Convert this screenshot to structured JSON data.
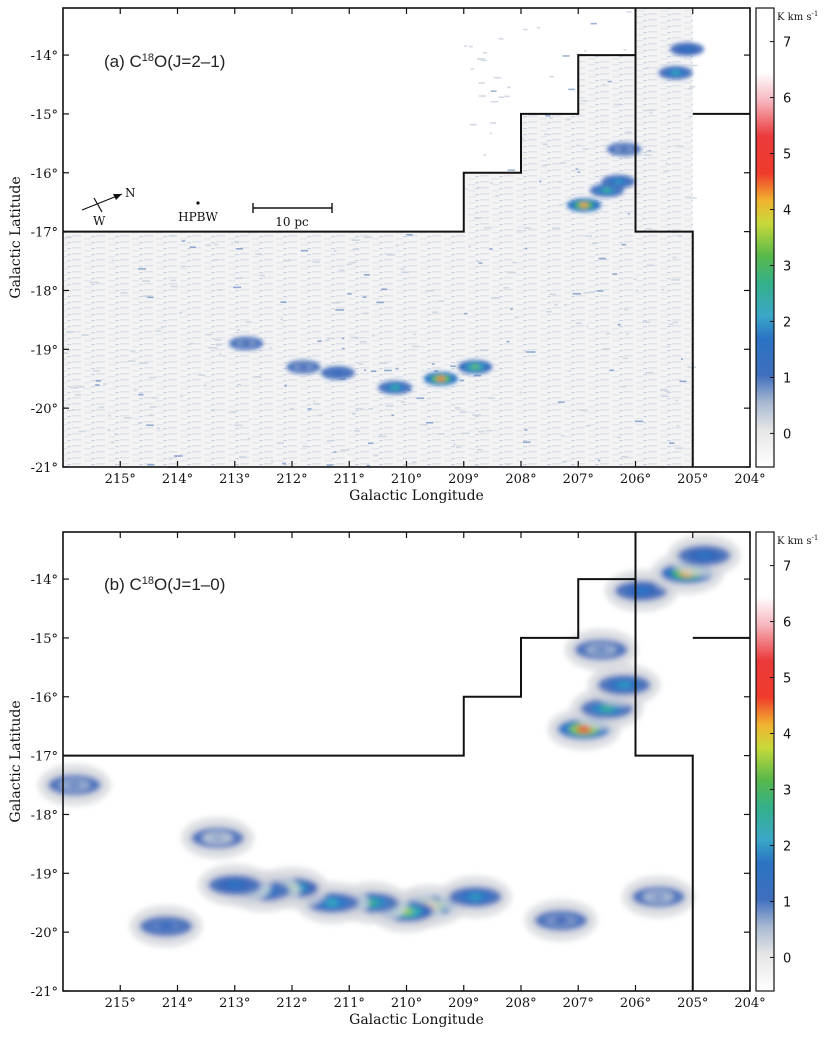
{
  "chart_data": [
    {
      "type": "heatmap",
      "panel_label": "(a) C",
      "panel_sup": "18",
      "panel_suffix": "O(J=2–1)",
      "xlabel": "Galactic Longitude",
      "ylabel": "Galactic Latitude",
      "xlim": [
        216,
        204
      ],
      "ylim": [
        -21,
        -13.2
      ],
      "x_ticks": [
        215,
        214,
        213,
        212,
        211,
        210,
        209,
        208,
        207,
        206,
        205,
        204
      ],
      "x_tick_labels": [
        "215°",
        "214°",
        "213°",
        "212°",
        "211°",
        "210°",
        "209°",
        "208°",
        "207°",
        "206°",
        "205°",
        "204°"
      ],
      "y_ticks": [
        -14,
        -15,
        -16,
        -17,
        -18,
        -19,
        -20,
        -21
      ],
      "y_tick_labels": [
        "-14°",
        "-15°",
        "-16°",
        "-17°",
        "-18°",
        "-19°",
        "-20°",
        "-21°"
      ],
      "colorbar": {
        "unit": "K km s",
        "unit_sup": "-1",
        "min": -0.6,
        "max": 7.6,
        "ticks": [
          0,
          1,
          2,
          3,
          4,
          5,
          6,
          7
        ]
      },
      "compass": {
        "north": "N",
        "west": "W"
      },
      "hpbw_label": "HPBW",
      "scalebar_label": "10 pc",
      "survey_boundary": [
        [
          216,
          -17
        ],
        [
          209,
          -17
        ],
        [
          209,
          -16
        ],
        [
          208,
          -16
        ],
        [
          208,
          -15
        ],
        [
          207,
          -15
        ],
        [
          207,
          -14
        ],
        [
          206,
          -14
        ],
        [
          206,
          -13.2
        ]
      ],
      "survey_boundary_right": [
        [
          206,
          -13.2
        ],
        [
          206,
          -17
        ],
        [
          205,
          -17
        ],
        [
          205,
          -18
        ],
        [
          205,
          -21
        ]
      ],
      "survey_boundary_notch": [
        [
          205,
          -15
        ],
        [
          204,
          -15
        ]
      ],
      "emission_clumps": [
        {
          "l": 209.4,
          "b": -19.5,
          "peak": 4.2
        },
        {
          "l": 208.8,
          "b": -19.3,
          "peak": 3.0
        },
        {
          "l": 210.2,
          "b": -19.65,
          "peak": 2.4
        },
        {
          "l": 211.2,
          "b": -19.4,
          "peak": 1.3
        },
        {
          "l": 211.8,
          "b": -19.3,
          "peak": 1.0
        },
        {
          "l": 212.8,
          "b": -18.9,
          "peak": 1.0
        },
        {
          "l": 206.9,
          "b": -16.55,
          "peak": 4.0
        },
        {
          "l": 206.5,
          "b": -16.3,
          "peak": 2.5
        },
        {
          "l": 206.3,
          "b": -16.15,
          "peak": 2.0
        },
        {
          "l": 206.2,
          "b": -15.6,
          "peak": 1.0
        },
        {
          "l": 205.3,
          "b": -14.3,
          "peak": 2.2
        },
        {
          "l": 205.1,
          "b": -13.9,
          "peak": 1.5
        }
      ]
    },
    {
      "type": "heatmap",
      "panel_label": "(b) C",
      "panel_sup": "18",
      "panel_suffix": "O(J=1–0)",
      "xlabel": "Galactic Longitude",
      "ylabel": "Galactic Latitude",
      "xlim": [
        216,
        204
      ],
      "ylim": [
        -21,
        -13.2
      ],
      "x_ticks": [
        215,
        214,
        213,
        212,
        211,
        210,
        209,
        208,
        207,
        206,
        205,
        204
      ],
      "x_tick_labels": [
        "215°",
        "214°",
        "213°",
        "212°",
        "211°",
        "210°",
        "209°",
        "208°",
        "207°",
        "206°",
        "205°",
        "204°"
      ],
      "y_ticks": [
        -14,
        -15,
        -16,
        -17,
        -18,
        -19,
        -20,
        -21
      ],
      "y_tick_labels": [
        "-14°",
        "-15°",
        "-16°",
        "-17°",
        "-18°",
        "-19°",
        "-20°",
        "-21°"
      ],
      "colorbar": {
        "unit": "K km s",
        "unit_sup": "-1",
        "min": -0.6,
        "max": 7.6,
        "ticks": [
          0,
          1,
          2,
          3,
          4,
          5,
          6,
          7
        ]
      },
      "survey_boundary": [
        [
          216,
          -17
        ],
        [
          209,
          -17
        ],
        [
          209,
          -16
        ],
        [
          208,
          -16
        ],
        [
          208,
          -15
        ],
        [
          207,
          -15
        ],
        [
          207,
          -14
        ],
        [
          206,
          -14
        ],
        [
          206,
          -13.2
        ]
      ],
      "survey_boundary_right": [
        [
          206,
          -13.2
        ],
        [
          206,
          -17
        ],
        [
          205,
          -17
        ],
        [
          205,
          -18
        ],
        [
          205,
          -21
        ]
      ],
      "survey_boundary_notch": [
        [
          205,
          -15
        ],
        [
          204,
          -15
        ]
      ],
      "emission_clumps": [
        {
          "l": 209.6,
          "b": -19.55,
          "peak": 4.2
        },
        {
          "l": 210.0,
          "b": -19.65,
          "peak": 3.2
        },
        {
          "l": 210.6,
          "b": -19.5,
          "peak": 2.5
        },
        {
          "l": 211.3,
          "b": -19.5,
          "peak": 2.2
        },
        {
          "l": 212.0,
          "b": -19.25,
          "peak": 2.8
        },
        {
          "l": 212.5,
          "b": -19.3,
          "peak": 2.0
        },
        {
          "l": 213.0,
          "b": -19.2,
          "peak": 1.5
        },
        {
          "l": 208.8,
          "b": -19.4,
          "peak": 2.0
        },
        {
          "l": 214.2,
          "b": -19.9,
          "peak": 1.2
        },
        {
          "l": 213.3,
          "b": -18.4,
          "peak": 0.6
        },
        {
          "l": 215.8,
          "b": -17.5,
          "peak": 0.8
        },
        {
          "l": 207.3,
          "b": -19.8,
          "peak": 1.0
        },
        {
          "l": 205.6,
          "b": -19.4,
          "peak": 0.7
        },
        {
          "l": 206.9,
          "b": -16.55,
          "peak": 4.5
        },
        {
          "l": 206.5,
          "b": -16.2,
          "peak": 2.5
        },
        {
          "l": 206.2,
          "b": -15.8,
          "peak": 2.0
        },
        {
          "l": 206.6,
          "b": -15.2,
          "peak": 0.8
        },
        {
          "l": 205.9,
          "b": -14.2,
          "peak": 1.5
        },
        {
          "l": 205.1,
          "b": -13.9,
          "peak": 4.0
        },
        {
          "l": 204.8,
          "b": -13.6,
          "peak": 1.5
        }
      ]
    }
  ]
}
